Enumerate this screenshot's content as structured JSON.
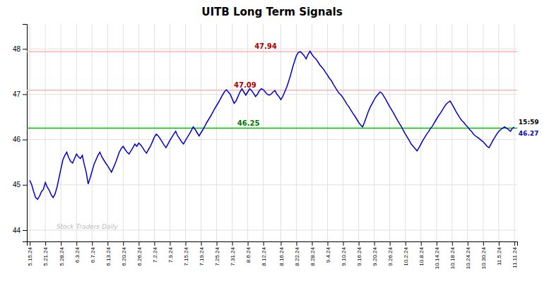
{
  "chart_data": {
    "type": "line",
    "title": "UITB Long Term Signals",
    "categories": [
      "5.15.24",
      null,
      null,
      null,
      null,
      null,
      null,
      null,
      "5.21.24",
      null,
      null,
      null,
      null,
      null,
      null,
      null,
      "5.28.24",
      null,
      null,
      null,
      null,
      null,
      null,
      null,
      "6.3.24",
      null,
      null,
      null,
      null,
      null,
      null,
      null,
      "6.7.24",
      null,
      null,
      null,
      null,
      null,
      null,
      null,
      "6.13.24",
      null,
      null,
      null,
      null,
      null,
      null,
      null,
      "6.20.24",
      null,
      null,
      null,
      null,
      null,
      null,
      null,
      "6.26.24",
      null,
      null,
      null,
      null,
      null,
      null,
      null,
      "7.2.24",
      null,
      null,
      null,
      null,
      null,
      null,
      null,
      "7.9.24",
      null,
      null,
      null,
      null,
      null,
      null,
      null,
      "7.15.24",
      null,
      null,
      null,
      null,
      null,
      null,
      null,
      "7.19.24",
      null,
      null,
      null,
      null,
      null,
      null,
      null,
      "7.25.24",
      null,
      null,
      null,
      null,
      null,
      null,
      null,
      "7.31.24",
      null,
      null,
      null,
      null,
      null,
      null,
      null,
      "8.6.24",
      null,
      null,
      null,
      null,
      null,
      null,
      null,
      "8.12.24",
      null,
      null,
      null,
      null,
      null,
      null,
      null,
      null,
      "8.16.24",
      null,
      null,
      null,
      null,
      null,
      null,
      null,
      "8.22.24",
      null,
      null,
      null,
      null,
      null,
      null,
      null,
      "8.28.24",
      null,
      null,
      null,
      null,
      null,
      null,
      null,
      "9.4.24",
      null,
      null,
      null,
      null,
      null,
      null,
      null,
      "9.10.24",
      null,
      null,
      null,
      null,
      null,
      null,
      null,
      "9.16.24",
      null,
      null,
      null,
      null,
      null,
      null,
      null,
      "9.20.24",
      null,
      null,
      null,
      null,
      null,
      null,
      null,
      "9.26.24",
      null,
      null,
      null,
      null,
      null,
      null,
      null,
      "10.2.24",
      null,
      null,
      null,
      null,
      null,
      null,
      null,
      "10.8.24",
      null,
      null,
      null,
      null,
      null,
      null,
      null,
      "10.14.24",
      null,
      null,
      null,
      null,
      null,
      null,
      null,
      "10.18.24",
      null,
      null,
      null,
      null,
      null,
      null,
      null,
      "10.24.24",
      null,
      null,
      null,
      null,
      null,
      null,
      null,
      "10.30.24",
      null,
      null,
      null,
      null,
      null,
      null,
      null,
      "11.5.24",
      null,
      null,
      null,
      null,
      null,
      null,
      null,
      "11.11.24"
    ],
    "values": [
      45.1,
      45.0,
      44.85,
      44.72,
      44.68,
      44.75,
      44.85,
      44.9,
      45.05,
      44.95,
      44.88,
      44.78,
      44.72,
      44.8,
      44.95,
      45.15,
      45.35,
      45.55,
      45.65,
      45.72,
      45.6,
      45.52,
      45.48,
      45.58,
      45.68,
      45.62,
      45.58,
      45.65,
      45.45,
      45.28,
      45.02,
      45.15,
      45.3,
      45.45,
      45.55,
      45.65,
      45.72,
      45.62,
      45.55,
      45.48,
      45.42,
      45.35,
      45.28,
      45.38,
      45.48,
      45.6,
      45.72,
      45.8,
      45.85,
      45.78,
      45.72,
      45.68,
      45.75,
      45.82,
      45.9,
      45.85,
      45.92,
      45.88,
      45.82,
      45.75,
      45.7,
      45.78,
      45.85,
      45.95,
      46.05,
      46.12,
      46.08,
      46.02,
      45.95,
      45.88,
      45.82,
      45.9,
      45.98,
      46.05,
      46.12,
      46.18,
      46.08,
      46.02,
      45.95,
      45.9,
      45.98,
      46.05,
      46.12,
      46.2,
      46.28,
      46.22,
      46.15,
      46.08,
      46.15,
      46.22,
      46.3,
      46.38,
      46.45,
      46.52,
      46.6,
      46.68,
      46.75,
      46.82,
      46.9,
      46.98,
      47.05,
      47.1,
      47.05,
      47.0,
      46.9,
      46.8,
      46.85,
      46.95,
      47.05,
      47.12,
      47.05,
      46.98,
      47.05,
      47.12,
      47.08,
      47.02,
      46.95,
      47.0,
      47.08,
      47.12,
      47.1,
      47.05,
      47.0,
      46.98,
      47.0,
      47.05,
      47.08,
      47.0,
      46.95,
      46.88,
      46.95,
      47.05,
      47.15,
      47.28,
      47.42,
      47.58,
      47.72,
      47.85,
      47.92,
      47.94,
      47.9,
      47.85,
      47.78,
      47.88,
      47.95,
      47.88,
      47.82,
      47.78,
      47.72,
      47.65,
      47.6,
      47.55,
      47.48,
      47.42,
      47.35,
      47.3,
      47.22,
      47.15,
      47.08,
      47.02,
      46.98,
      46.92,
      46.85,
      46.78,
      46.72,
      46.65,
      46.58,
      46.52,
      46.45,
      46.38,
      46.32,
      46.28,
      46.38,
      46.5,
      46.62,
      46.72,
      46.8,
      46.88,
      46.95,
      47.0,
      47.05,
      47.02,
      46.95,
      46.88,
      46.8,
      46.72,
      46.65,
      46.58,
      46.5,
      46.42,
      46.35,
      46.28,
      46.2,
      46.12,
      46.05,
      45.98,
      45.9,
      45.85,
      45.8,
      45.75,
      45.82,
      45.9,
      45.98,
      46.05,
      46.12,
      46.18,
      46.25,
      46.3,
      46.38,
      46.45,
      46.52,
      46.58,
      46.65,
      46.72,
      46.78,
      46.82,
      46.85,
      46.78,
      46.7,
      46.62,
      46.55,
      46.48,
      46.42,
      46.38,
      46.32,
      46.28,
      46.22,
      46.18,
      46.12,
      46.08,
      46.05,
      46.02,
      45.98,
      45.95,
      45.9,
      45.85,
      45.82,
      45.9,
      45.98,
      46.05,
      46.12,
      46.18,
      46.22,
      46.25,
      46.28,
      46.25,
      46.22,
      46.18,
      46.25,
      46.27
    ],
    "color": "#0000cc",
    "ylim": [
      43.75,
      48.55
    ],
    "yticks": [
      44,
      45,
      46,
      47,
      48
    ],
    "grid": true,
    "reference_lines": [
      {
        "value": 47.09,
        "color": "#ffb3b3",
        "label": "47.09",
        "label_color": "#aa0000"
      },
      {
        "value": 47.94,
        "color": "#ffb3b3",
        "label": "47.94",
        "label_color": "#aa0000"
      },
      {
        "value": 46.25,
        "color": "#00bb00",
        "label": "46.25",
        "label_color": "#007700"
      }
    ],
    "annotations": [
      {
        "text": "15:59",
        "color": "#000000"
      },
      {
        "text": "46.27",
        "color": "#0000cc"
      }
    ],
    "watermark": {
      "text": "Stock Traders Daily",
      "color": "#bbbbbb"
    }
  }
}
